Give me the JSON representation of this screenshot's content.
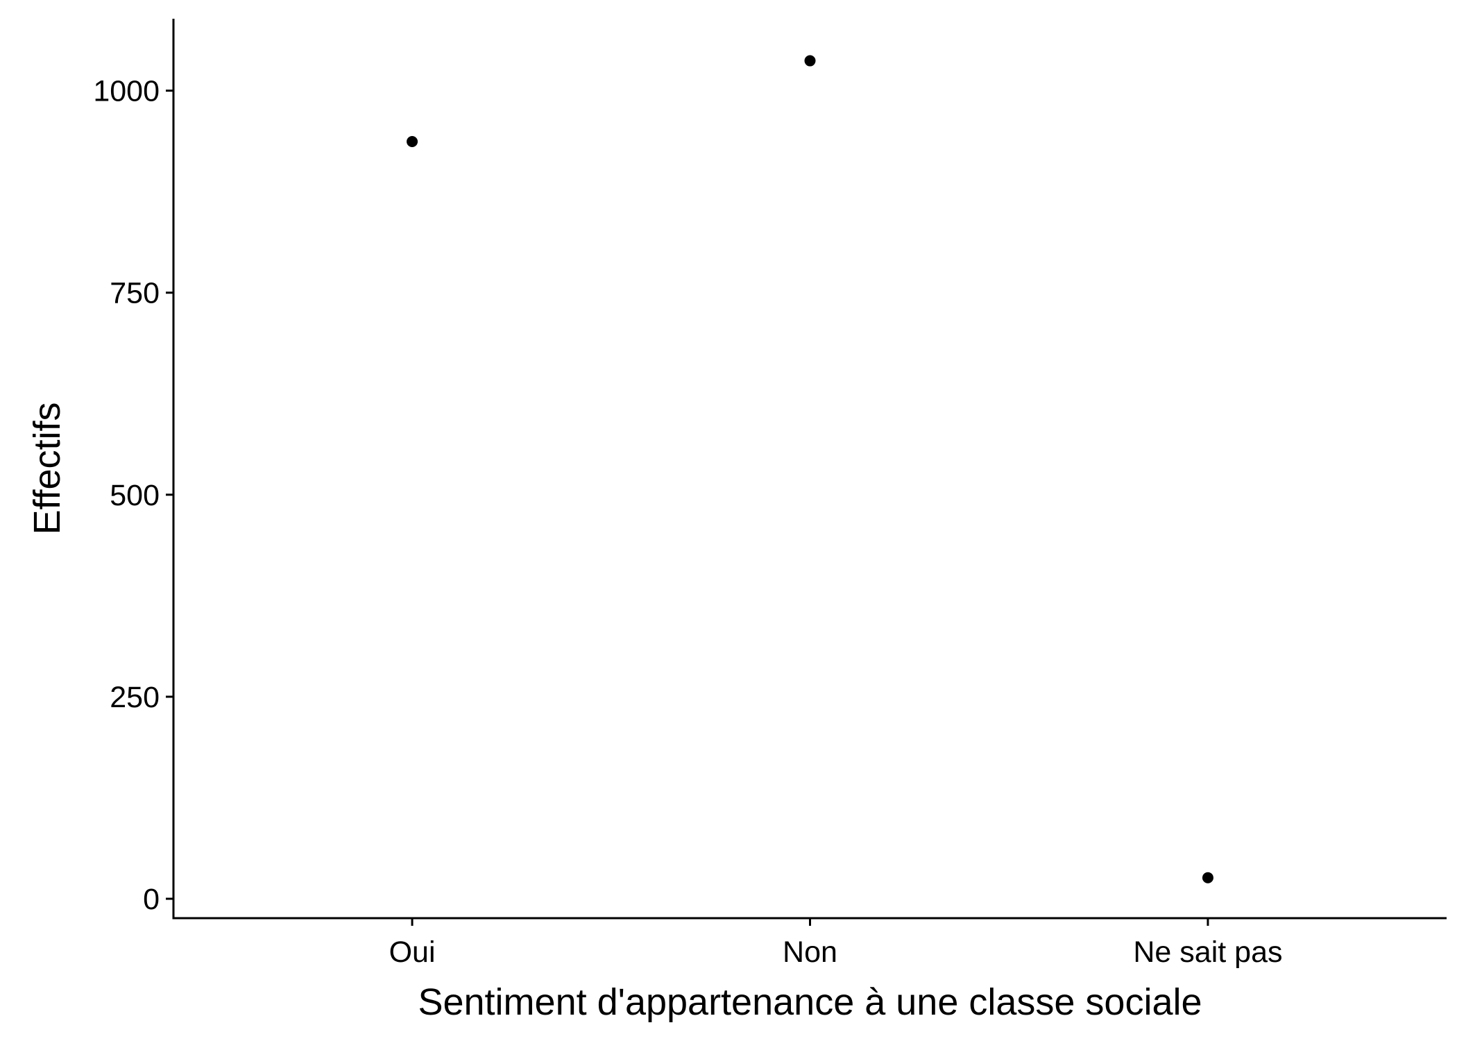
{
  "chart_data": {
    "type": "scatter",
    "categories": [
      "Oui",
      "Non",
      "Ne sait pas"
    ],
    "values": [
      937,
      1037,
      26
    ],
    "xlabel": "Sentiment d'appartenance à une classe sociale",
    "ylabel": "Effectifs",
    "ylim": [
      -24,
      1089
    ],
    "yticks": [
      0,
      250,
      500,
      750,
      1000
    ],
    "grid": false,
    "point_color": "#000000"
  }
}
